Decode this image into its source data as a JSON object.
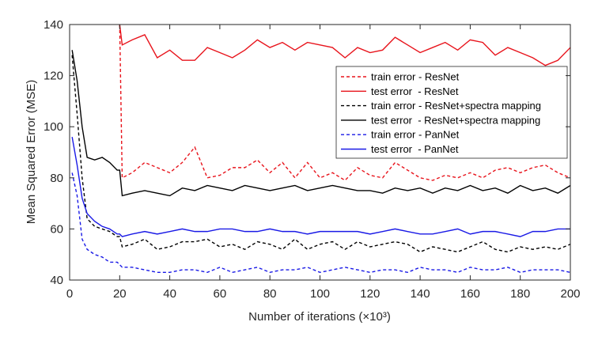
{
  "chart_data": {
    "type": "line",
    "xlabel": "Number of iterations (×10³)",
    "ylabel": "Mean Squared Error (MSE)",
    "x": [
      1,
      3,
      5,
      7,
      10,
      13,
      16,
      19,
      20,
      21,
      25,
      30,
      35,
      40,
      45,
      50,
      55,
      60,
      65,
      70,
      75,
      80,
      85,
      90,
      95,
      100,
      105,
      110,
      115,
      120,
      125,
      130,
      135,
      140,
      145,
      150,
      155,
      160,
      165,
      170,
      175,
      180,
      185,
      190,
      195,
      200
    ],
    "xlim": [
      0,
      200
    ],
    "xticks": [
      0,
      20,
      40,
      60,
      80,
      100,
      120,
      140,
      160,
      180,
      200
    ],
    "ylim": [
      40,
      140
    ],
    "yticks": [
      40,
      60,
      80,
      100,
      120,
      140
    ],
    "grid": false,
    "legend": "northeast",
    "series": [
      {
        "name": "train error - ResNet",
        "color": "#e8141c",
        "linestyle": "dashed",
        "values": [
          null,
          null,
          null,
          null,
          null,
          null,
          null,
          null,
          140,
          80,
          82,
          86,
          84,
          82,
          86,
          92,
          80,
          81,
          84,
          84,
          87,
          82,
          86,
          80,
          86,
          80,
          82,
          79,
          84,
          81,
          80,
          86,
          83,
          80,
          79,
          81,
          80,
          82,
          80,
          83,
          84,
          82,
          84,
          85,
          82,
          80
        ]
      },
      {
        "name": "test error  - ResNet",
        "color": "#e8141c",
        "linestyle": "solid",
        "values": [
          null,
          null,
          null,
          null,
          null,
          null,
          null,
          null,
          140,
          132,
          134,
          136,
          127,
          130,
          126,
          126,
          131,
          129,
          127,
          130,
          134,
          131,
          133,
          130,
          133,
          132,
          131,
          127,
          131,
          129,
          130,
          135,
          132,
          129,
          131,
          133,
          130,
          134,
          133,
          128,
          131,
          129,
          127,
          124,
          126,
          131
        ]
      },
      {
        "name": "train error - ResNet+spectra mapping",
        "color": "#000000",
        "linestyle": "dashed",
        "values": [
          128,
          105,
          80,
          64,
          61,
          60,
          59,
          57,
          57,
          53,
          54,
          56,
          52,
          53,
          55,
          55,
          56,
          53,
          54,
          52,
          55,
          54,
          52,
          56,
          52,
          54,
          55,
          52,
          55,
          53,
          54,
          55,
          54,
          51,
          53,
          52,
          51,
          53,
          55,
          52,
          51,
          53,
          52,
          53,
          52,
          54
        ]
      },
      {
        "name": "test error  - ResNet+spectra mapping",
        "color": "#000000",
        "linestyle": "solid",
        "values": [
          130,
          118,
          100,
          88,
          87,
          88,
          86,
          83,
          83,
          73,
          74,
          75,
          74,
          73,
          76,
          75,
          77,
          76,
          75,
          77,
          76,
          75,
          76,
          77,
          75,
          76,
          77,
          76,
          75,
          75,
          74,
          76,
          75,
          76,
          74,
          76,
          75,
          77,
          75,
          76,
          74,
          77,
          75,
          76,
          74,
          77
        ]
      },
      {
        "name": "train error - PanNet",
        "color": "#1a1ae6",
        "linestyle": "dashed",
        "values": [
          82,
          73,
          56,
          52,
          50,
          49,
          47,
          47,
          46,
          45,
          45,
          44,
          43,
          43,
          44,
          44,
          43,
          45,
          43,
          44,
          45,
          43,
          44,
          44,
          45,
          43,
          44,
          45,
          44,
          43,
          44,
          44,
          43,
          45,
          44,
          44,
          43,
          45,
          44,
          44,
          45,
          43,
          44,
          44,
          44,
          43
        ]
      },
      {
        "name": "test error  - PanNet",
        "color": "#1a1ae6",
        "linestyle": "solid",
        "values": [
          96,
          85,
          72,
          66,
          63,
          61,
          60,
          58,
          58,
          57,
          58,
          59,
          58,
          59,
          60,
          59,
          59,
          60,
          60,
          59,
          59,
          60,
          59,
          59,
          58,
          59,
          59,
          59,
          59,
          58,
          59,
          60,
          59,
          58,
          58,
          59,
          60,
          58,
          59,
          59,
          58,
          57,
          59,
          59,
          60,
          60
        ]
      }
    ]
  }
}
